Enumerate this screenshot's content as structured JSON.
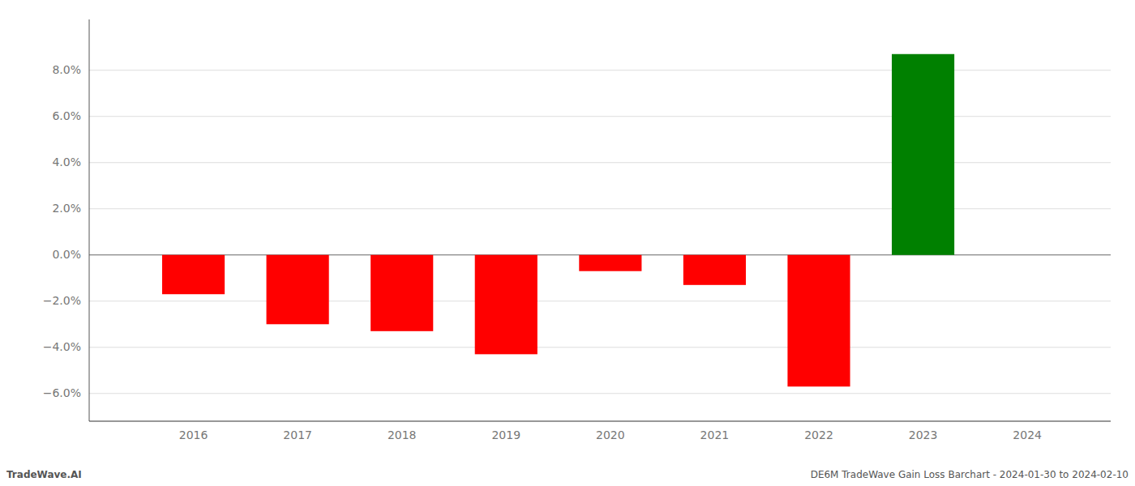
{
  "chart_data": {
    "type": "bar",
    "x": [
      2016,
      2017,
      2018,
      2019,
      2020,
      2021,
      2022,
      2023
    ],
    "values": [
      -0.017,
      -0.03,
      -0.033,
      -0.043,
      -0.007,
      -0.013,
      -0.057,
      0.087
    ],
    "colors": [
      "#ff0000",
      "#ff0000",
      "#ff0000",
      "#ff0000",
      "#ff0000",
      "#ff0000",
      "#ff0000",
      "#008000"
    ],
    "xlim": [
      2015.0,
      2024.8
    ],
    "xticks": [
      2016,
      2017,
      2018,
      2019,
      2020,
      2021,
      2022,
      2023,
      2024
    ],
    "ylim": [
      -0.072,
      0.102
    ],
    "yticks": [
      {
        "value": -0.06,
        "label": "−6.0%"
      },
      {
        "value": -0.04,
        "label": "−4.0%"
      },
      {
        "value": -0.02,
        "label": "−2.0%"
      },
      {
        "value": 0.0,
        "label": "0.0%"
      },
      {
        "value": 0.02,
        "label": "2.0%"
      },
      {
        "value": 0.04,
        "label": "4.0%"
      },
      {
        "value": 0.06,
        "label": "6.0%"
      },
      {
        "value": 0.08,
        "label": "8.0%"
      }
    ],
    "grid": true,
    "annotations": [
      "TradeWave.AI",
      "DE6M TradeWave Gain Loss Barchart - 2024-01-30 to 2024-02-10"
    ]
  }
}
